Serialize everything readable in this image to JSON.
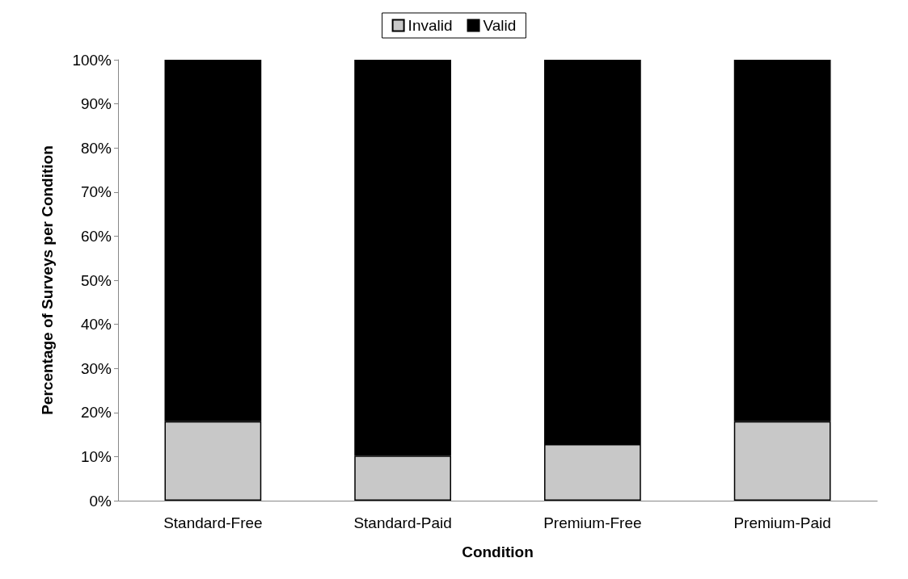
{
  "chart_data": {
    "type": "bar",
    "stacked": true,
    "xlabel": "Condition",
    "ylabel": "Percentage of Surveys per Condition",
    "categories": [
      "Standard-Free",
      "Standard-Paid",
      "Premium-Free",
      "Premium-Paid"
    ],
    "series": [
      {
        "name": "Invalid",
        "color": "#c8c8c8",
        "values": [
          18,
          10.2,
          12.8,
          18
        ]
      },
      {
        "name": "Valid",
        "color": "#000000",
        "values": [
          82,
          89.8,
          87.2,
          82
        ]
      }
    ],
    "ylim": [
      0,
      100
    ],
    "yticks": [
      {
        "value": 0,
        "label": "0%"
      },
      {
        "value": 10,
        "label": "10%"
      },
      {
        "value": 20,
        "label": "20%"
      },
      {
        "value": 30,
        "label": "30%"
      },
      {
        "value": 40,
        "label": "40%"
      },
      {
        "value": 50,
        "label": "50%"
      },
      {
        "value": 60,
        "label": "60%"
      },
      {
        "value": 70,
        "label": "70%"
      },
      {
        "value": 80,
        "label": "80%"
      },
      {
        "value": 90,
        "label": "90%"
      },
      {
        "value": 100,
        "label": "100%"
      }
    ],
    "grid": false,
    "legend": "top"
  }
}
